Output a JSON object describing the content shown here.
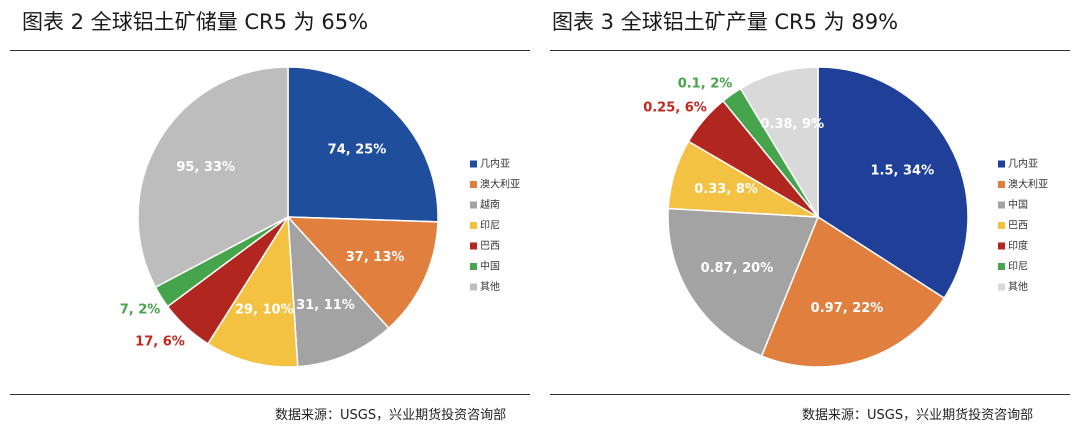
{
  "charts": [
    {
      "title": "图表 2 全球铝土矿储量 CR5 为 65%",
      "source": "数据来源：USGS，兴业期货投资咨询部"
    },
    {
      "title": "图表 3 全球铝土矿产量 CR5 为 89%",
      "source": "数据来源：USGS，兴业期货投资咨询部"
    }
  ],
  "chart_data": [
    {
      "type": "pie",
      "categories": [
        "几内亚",
        "澳大利亚",
        "越南",
        "印尼",
        "巴西",
        "中国",
        "其他"
      ],
      "values": [
        74,
        37,
        31,
        29,
        17,
        7,
        95
      ],
      "percents": [
        25,
        13,
        11,
        10,
        6,
        2,
        33
      ],
      "data_labels": [
        "74, 25%",
        "37, 13%",
        "31, 11%",
        "29, 10%",
        "17, 6%",
        "7, 2%",
        "95, 33%"
      ],
      "colors": [
        "#1f4e9c",
        "#e07f3e",
        "#a3a3a3",
        "#f4c242",
        "#b1261f",
        "#45a44c",
        "#bdbdbd"
      ],
      "label_colors": [
        "#ffffff",
        "#ffffff",
        "#ffffff",
        "#ffffff",
        "#c0281f",
        "#45a44c",
        "#ffffff"
      ],
      "legend_position": "right"
    },
    {
      "type": "pie",
      "categories": [
        "几内亚",
        "澳大利亚",
        "中国",
        "巴西",
        "印度",
        "印尼",
        "其他"
      ],
      "values": [
        1.5,
        0.97,
        0.87,
        0.33,
        0.25,
        0.1,
        0.38
      ],
      "percents": [
        34,
        22,
        20,
        8,
        6,
        2,
        9
      ],
      "data_labels": [
        "1.5, 34%",
        "0.97, 22%",
        "0.87, 20%",
        "0.33, 8%",
        "0.25, 6%",
        "0.1, 2%",
        "0.38, 9%"
      ],
      "colors": [
        "#1f3f99",
        "#e07f3e",
        "#a3a3a3",
        "#f4c242",
        "#b1261f",
        "#45a44c",
        "#d9d9d9"
      ],
      "label_colors": [
        "#ffffff",
        "#ffffff",
        "#ffffff",
        "#ffffff",
        "#c0281f",
        "#45a44c",
        "#ffffff"
      ],
      "legend_position": "right"
    }
  ]
}
